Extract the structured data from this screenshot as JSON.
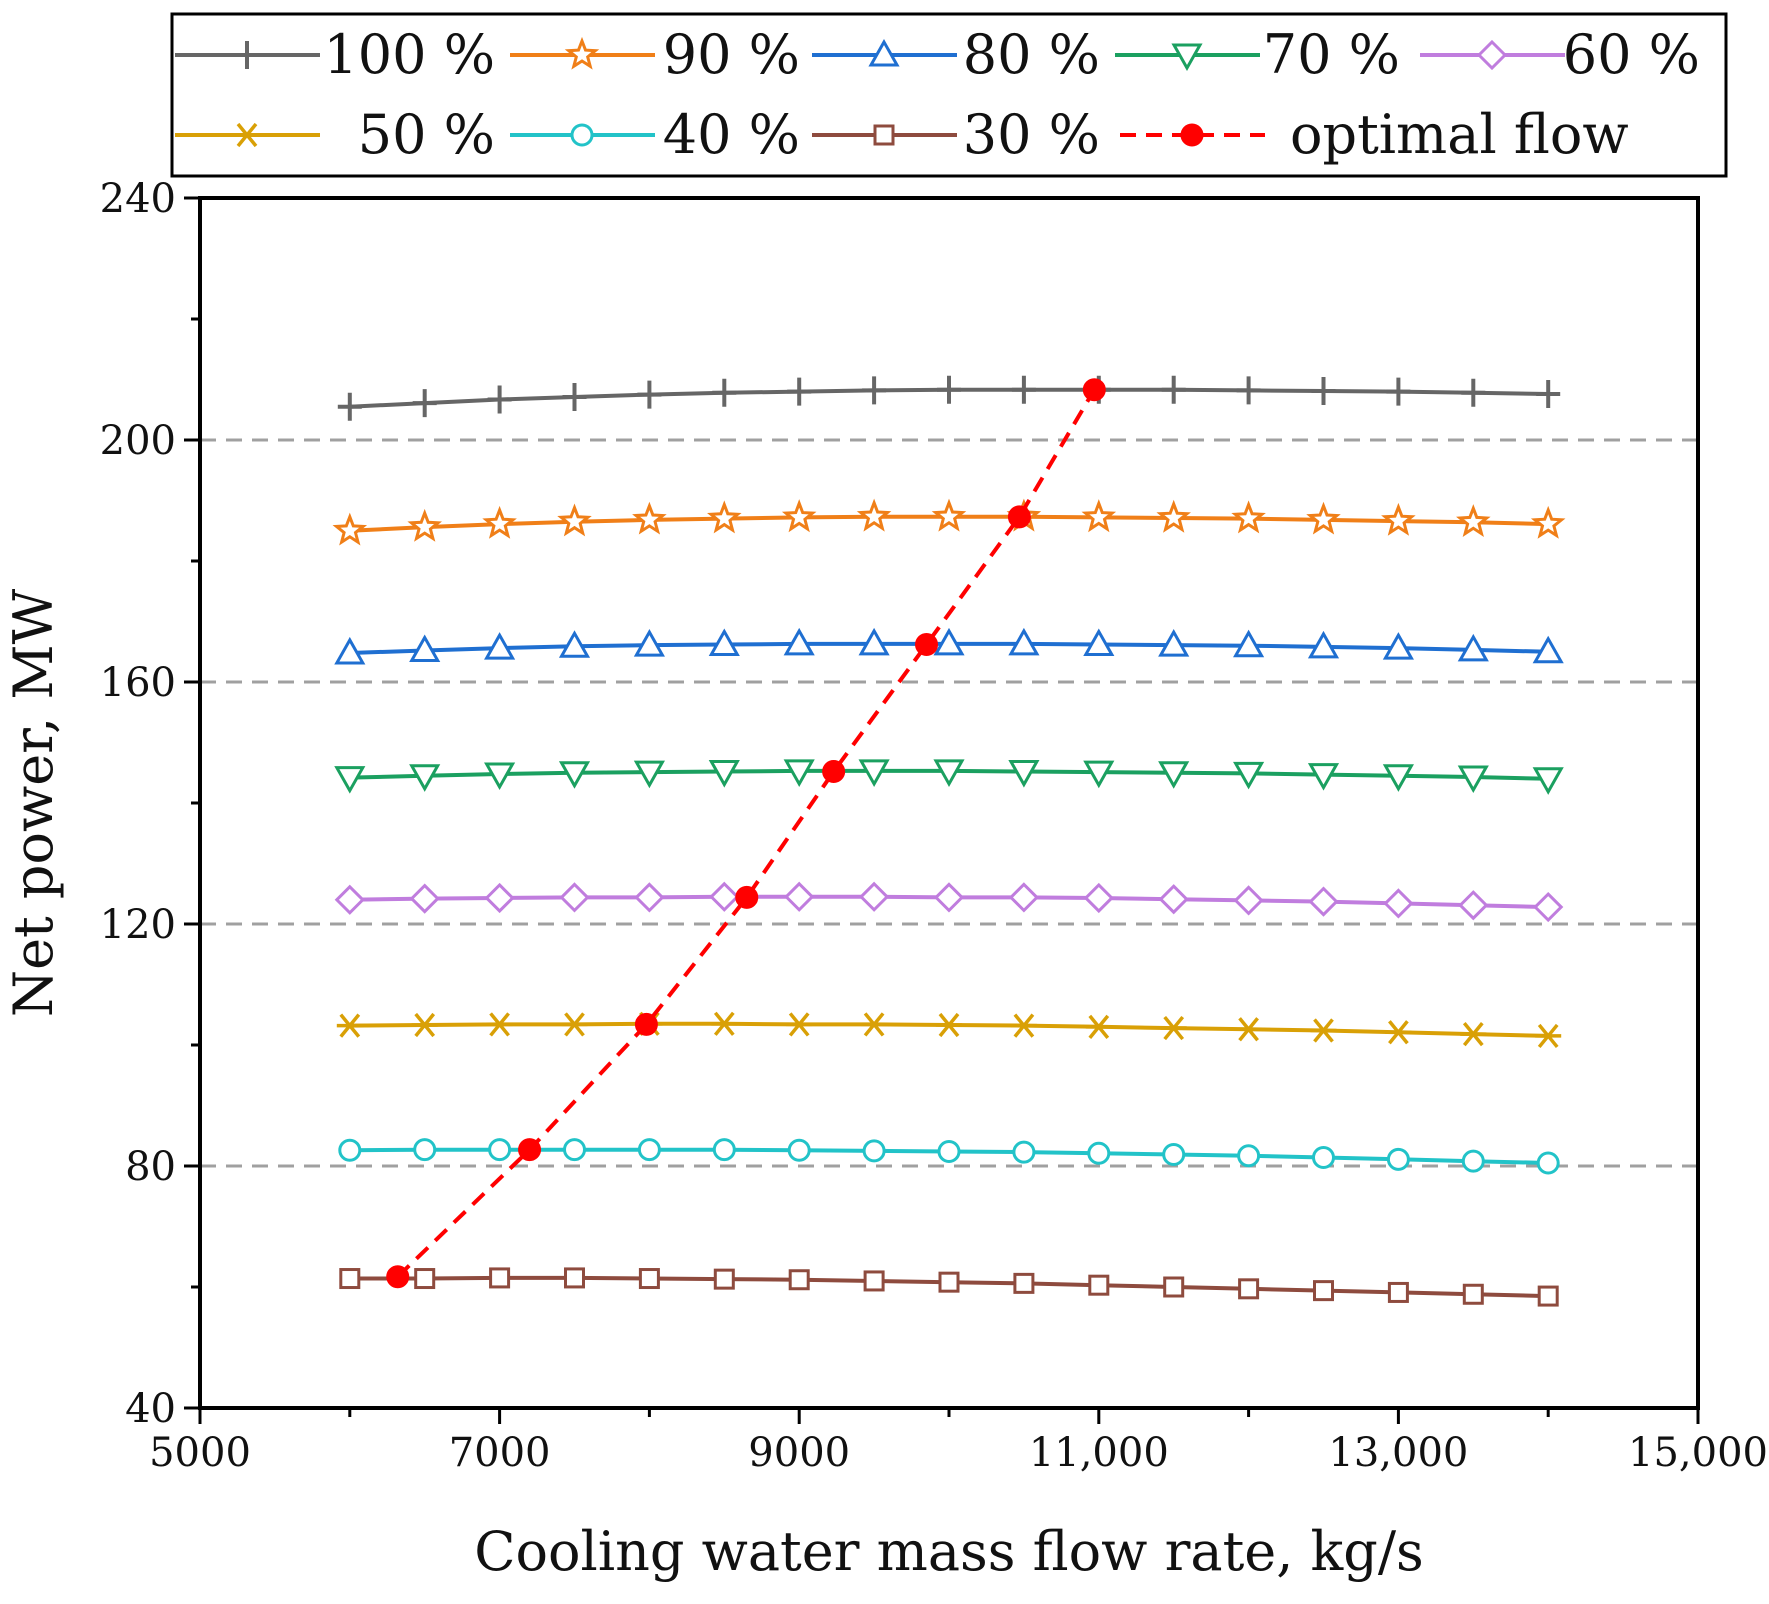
{
  "chart_data": {
    "type": "line",
    "title": "",
    "xlabel": "Cooling water mass flow rate, kg/s",
    "ylabel": "Net power, MW",
    "xlim": [
      5000,
      15000
    ],
    "ylim": [
      40,
      240
    ],
    "xticks": [
      5000,
      7000,
      9000,
      11000,
      13000,
      15000
    ],
    "xtick_labels": [
      "5000",
      "7000",
      "9000",
      "11,000",
      "13,000",
      "15,000"
    ],
    "yticks": [
      40,
      80,
      120,
      160,
      200,
      240
    ],
    "ytick_labels": [
      "40",
      "80",
      "120",
      "160",
      "200",
      "240"
    ],
    "grid_y_dashed": [
      80,
      120,
      160,
      200
    ],
    "legend_position": "top",
    "x": [
      6000,
      6500,
      7000,
      7500,
      8000,
      8500,
      9000,
      9500,
      10000,
      10500,
      11000,
      11500,
      12000,
      12500,
      13000,
      13500,
      14000
    ],
    "series": [
      {
        "name": "100 %",
        "label": "100 %",
        "color": "#666666",
        "marker": "plus",
        "values": [
          205.5,
          206.1,
          206.7,
          207.1,
          207.5,
          207.8,
          208.0,
          208.2,
          208.3,
          208.3,
          208.3,
          208.3,
          208.2,
          208.1,
          208.0,
          207.8,
          207.6
        ]
      },
      {
        "name": "90 %",
        "label": "90 %",
        "color": "#F07F18",
        "marker": "star",
        "values": [
          185.0,
          185.6,
          186.1,
          186.5,
          186.8,
          187.0,
          187.2,
          187.3,
          187.3,
          187.3,
          187.2,
          187.1,
          187.0,
          186.8,
          186.6,
          186.4,
          186.1
        ]
      },
      {
        "name": "80 %",
        "label": "80 %",
        "color": "#1F6FD1",
        "marker": "triangle-up",
        "values": [
          164.8,
          165.2,
          165.6,
          165.9,
          166.1,
          166.2,
          166.3,
          166.3,
          166.3,
          166.3,
          166.2,
          166.1,
          166.0,
          165.8,
          165.6,
          165.3,
          165.0
        ]
      },
      {
        "name": "70 %",
        "label": "70 %",
        "color": "#1BA060",
        "marker": "triangle-down",
        "values": [
          144.2,
          144.5,
          144.8,
          145.0,
          145.1,
          145.2,
          145.3,
          145.3,
          145.3,
          145.2,
          145.1,
          145.0,
          144.9,
          144.7,
          144.5,
          144.3,
          144.0
        ]
      },
      {
        "name": "60 %",
        "label": "60 %",
        "color": "#C07DDE",
        "marker": "diamond",
        "values": [
          124.0,
          124.2,
          124.3,
          124.4,
          124.4,
          124.5,
          124.5,
          124.5,
          124.4,
          124.4,
          124.3,
          124.1,
          123.9,
          123.7,
          123.4,
          123.1,
          122.8
        ]
      },
      {
        "name": "50 %",
        "label": "50 %",
        "color": "#D9A006",
        "marker": "asterisk",
        "values": [
          103.2,
          103.3,
          103.4,
          103.4,
          103.5,
          103.5,
          103.4,
          103.4,
          103.3,
          103.2,
          103.0,
          102.8,
          102.6,
          102.4,
          102.1,
          101.8,
          101.5
        ]
      },
      {
        "name": "40 %",
        "label": "40 %",
        "color": "#22C3C8",
        "marker": "circle",
        "values": [
          82.6,
          82.7,
          82.7,
          82.7,
          82.7,
          82.7,
          82.6,
          82.5,
          82.4,
          82.3,
          82.1,
          81.9,
          81.7,
          81.4,
          81.1,
          80.8,
          80.5
        ]
      },
      {
        "name": "30 %",
        "label": "30 %",
        "color": "#8E4B3E",
        "marker": "square",
        "values": [
          61.4,
          61.4,
          61.5,
          61.5,
          61.4,
          61.3,
          61.2,
          61.0,
          60.8,
          60.6,
          60.3,
          60.0,
          59.7,
          59.4,
          59.1,
          58.8,
          58.5
        ]
      }
    ],
    "optimal_flow": {
      "name": "optimal flow",
      "label": "optimal flow",
      "color": "#FF0000",
      "line_style": "dashed",
      "x": [
        6320,
        7200,
        7980,
        8650,
        9230,
        9850,
        10470,
        10970
      ],
      "values": [
        61.7,
        82.7,
        103.4,
        124.4,
        145.2,
        166.2,
        187.3,
        208.3
      ]
    }
  }
}
